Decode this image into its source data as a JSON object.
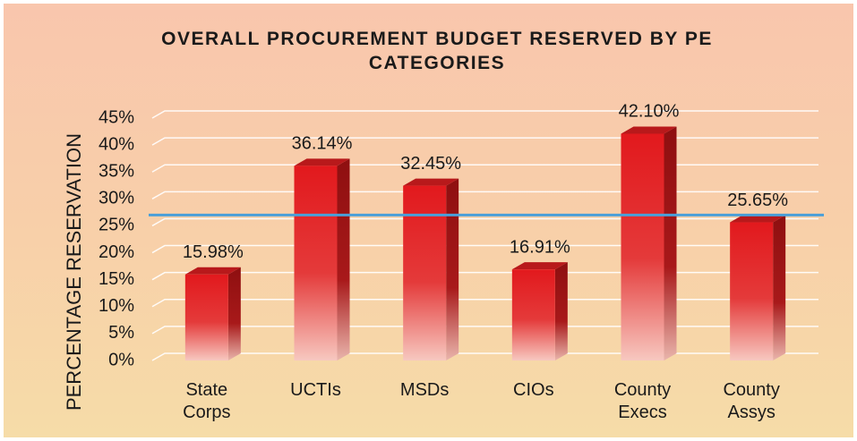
{
  "chart_data": {
    "type": "bar3d",
    "title": "OVERALL PROCUREMENT BUDGET RESERVED BY PE CATEGORIES",
    "y_label": "PERCENTAGE RESERVATION",
    "categories": [
      "State Corps",
      "UCTIs",
      "MSDs",
      "CIOs",
      "County Execs",
      "County Assys"
    ],
    "values": [
      15.98,
      36.14,
      32.45,
      16.91,
      42.1,
      25.65
    ],
    "value_labels": [
      "15.98%",
      "36.14%",
      "32.45%",
      "16.91%",
      "42.10%",
      "25.65%"
    ],
    "color": "#e2191d",
    "reference_line": 27,
    "reference_color": "#4a9fd8",
    "ylim": [
      0,
      45
    ],
    "yticks": [
      {
        "value": 0,
        "label": "0%"
      },
      {
        "value": 5,
        "label": "5%"
      },
      {
        "value": 10,
        "label": "10%"
      },
      {
        "value": 15,
        "label": "15%"
      },
      {
        "value": 20,
        "label": "20%"
      },
      {
        "value": 25,
        "label": "25%"
      },
      {
        "value": 30,
        "label": "30%"
      },
      {
        "value": 35,
        "label": "35%"
      },
      {
        "value": 40,
        "label": "40%"
      },
      {
        "value": 45,
        "label": "45%"
      }
    ],
    "grid": true
  }
}
